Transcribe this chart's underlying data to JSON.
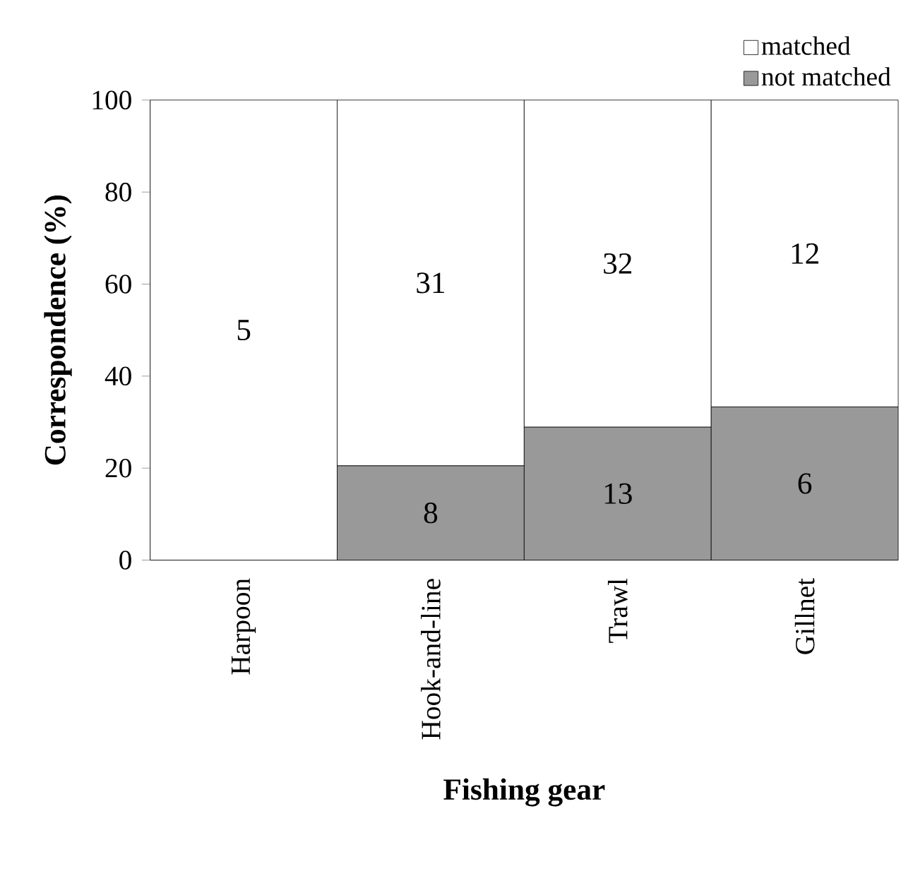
{
  "chart_data": {
    "type": "bar",
    "stacked": true,
    "xlabel": "Fishing gear",
    "ylabel": "Correspondence (%)",
    "categories": [
      "Harpoon",
      "Hook-and-line",
      "Trawl",
      "Gillnet"
    ],
    "series": [
      {
        "name": "not matched",
        "color": "#999999",
        "values": [
          0,
          20.5,
          28.9,
          33.3
        ]
      },
      {
        "name": "matched",
        "color": "#ffffff",
        "values": [
          100,
          79.5,
          71.1,
          66.7
        ]
      }
    ],
    "annotations": [
      "5",
      "31",
      "32",
      "12",
      "8",
      "13",
      "6"
    ],
    "ylim": [
      0,
      100
    ],
    "yticks": [
      0,
      20,
      40,
      60,
      80,
      100
    ],
    "legend": "top right"
  }
}
